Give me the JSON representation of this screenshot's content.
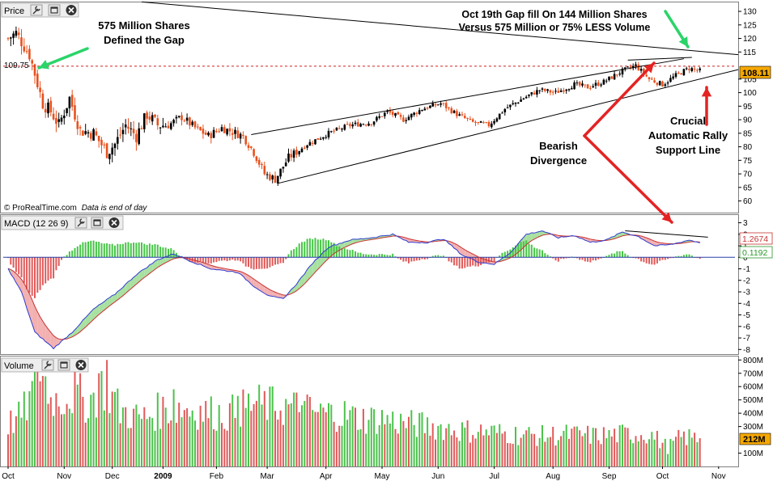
{
  "panels": {
    "price": {
      "title": "Price",
      "current_badge": "108.11",
      "level_label": "109.75"
    },
    "macd": {
      "title": "MACD (12 26 9)",
      "badge_macd": "1.2674",
      "badge_hist": "0.1192"
    },
    "volume": {
      "title": "Volume",
      "current_badge": "212M"
    }
  },
  "footer": {
    "brand": "© ProRealTime.com",
    "note": "Data is end of day"
  },
  "annotations": {
    "gap_top": "575 Million Shares",
    "gap_bottom": "Defined the Gap",
    "fill_line1": "Oct 19th Gap fill On 144 Million Shares",
    "fill_line2": "Versus 575 Million or 75% LESS Volume",
    "bear1": "Bearish",
    "bear2": "Divergence",
    "crucial1": "Crucial",
    "crucial2": "Automatic Rally",
    "crucial3": "Support Line"
  },
  "colors": {
    "up": "#000000",
    "down": "#e8511e",
    "vol_up": "#4cc24c",
    "vol_down": "#e05a5a",
    "macd_line": "#2f3ccf",
    "signal_line": "#c83232",
    "hist_pos": "#46c646",
    "hist_neg": "#e05a5a",
    "fill_pos": "#a8e0a0",
    "fill_neg": "#f2b0b0",
    "badge_price": "#f5a800",
    "badge_volume": "#f5a800",
    "arrow_green": "#2bd46a",
    "arrow_red": "#e42323",
    "dotted_level": "#d02020"
  },
  "chart_data": [
    {
      "type": "candlestick",
      "name": "Price",
      "ylim": [
        56,
        133
      ],
      "yticks": [
        60,
        65,
        70,
        75,
        80,
        85,
        90,
        95,
        100,
        105,
        110,
        115,
        120,
        125,
        130
      ],
      "x_labels": [
        "Oct",
        "Nov",
        "Dec",
        "2009",
        "Feb",
        "Mar",
        "Apr",
        "May",
        "Jun",
        "Jul",
        "Aug",
        "Sep",
        "Oct",
        "Nov"
      ],
      "x_label_positions": [
        0,
        21,
        39,
        58,
        78,
        97,
        119,
        140,
        161,
        182,
        204,
        225,
        245,
        266
      ],
      "n_bars": 260,
      "key_points": [
        {
          "i": 0,
          "v": 120
        },
        {
          "i": 3,
          "v": 122
        },
        {
          "i": 8,
          "v": 114
        },
        {
          "i": 10,
          "v": 107
        },
        {
          "i": 13,
          "v": 96
        },
        {
          "i": 16,
          "v": 93
        },
        {
          "i": 19,
          "v": 88
        },
        {
          "i": 23,
          "v": 98
        },
        {
          "i": 27,
          "v": 86
        },
        {
          "i": 32,
          "v": 85
        },
        {
          "i": 37,
          "v": 78
        },
        {
          "i": 40,
          "v": 81
        },
        {
          "i": 44,
          "v": 88
        },
        {
          "i": 48,
          "v": 84
        },
        {
          "i": 52,
          "v": 92
        },
        {
          "i": 56,
          "v": 88
        },
        {
          "i": 60,
          "v": 88
        },
        {
          "i": 65,
          "v": 91
        },
        {
          "i": 70,
          "v": 87
        },
        {
          "i": 75,
          "v": 84
        },
        {
          "i": 80,
          "v": 87
        },
        {
          "i": 88,
          "v": 84
        },
        {
          "i": 92,
          "v": 78
        },
        {
          "i": 96,
          "v": 70
        },
        {
          "i": 100,
          "v": 68
        },
        {
          "i": 105,
          "v": 76
        },
        {
          "i": 112,
          "v": 81
        },
        {
          "i": 120,
          "v": 85
        },
        {
          "i": 128,
          "v": 88
        },
        {
          "i": 136,
          "v": 89
        },
        {
          "i": 142,
          "v": 93
        },
        {
          "i": 148,
          "v": 90
        },
        {
          "i": 155,
          "v": 94
        },
        {
          "i": 162,
          "v": 96
        },
        {
          "i": 168,
          "v": 92
        },
        {
          "i": 174,
          "v": 89
        },
        {
          "i": 180,
          "v": 88
        },
        {
          "i": 186,
          "v": 94
        },
        {
          "i": 193,
          "v": 98
        },
        {
          "i": 199,
          "v": 101
        },
        {
          "i": 205,
          "v": 100
        },
        {
          "i": 212,
          "v": 103
        },
        {
          "i": 217,
          "v": 102
        },
        {
          "i": 223,
          "v": 104
        },
        {
          "i": 230,
          "v": 108
        },
        {
          "i": 235,
          "v": 110
        },
        {
          "i": 240,
          "v": 105
        },
        {
          "i": 245,
          "v": 103
        },
        {
          "i": 251,
          "v": 107
        },
        {
          "i": 255,
          "v": 109
        },
        {
          "i": 259,
          "v": 108
        }
      ],
      "gap_level": 109.75,
      "last": 108.11,
      "lines": [
        {
          "name": "long-downtrend",
          "p1": [
            50,
            133.5
          ],
          "p2": [
            276,
            114.0
          ]
        },
        {
          "name": "wedge-upper",
          "p1": [
            91,
            84.5
          ],
          "p2": [
            253,
            112.5
          ]
        },
        {
          "name": "wedge-lower",
          "p1": [
            101,
            66.5
          ],
          "p2": [
            276,
            108.5
          ]
        },
        {
          "name": "recent-highs",
          "p1": [
            232,
            112.0
          ],
          "p2": [
            256,
            113.0
          ]
        }
      ]
    },
    {
      "type": "line",
      "name": "MACD (12 26 9)",
      "ylim": [
        -8.4,
        3.6
      ],
      "yticks": [
        -8,
        -7,
        -6,
        -5,
        -4,
        -3,
        -2,
        -1,
        0,
        1,
        2,
        3
      ],
      "macd_last": 1.2674,
      "hist_last": 0.1192,
      "macd_key_points": [
        {
          "i": 0,
          "v": -1.0
        },
        {
          "i": 5,
          "v": -3.0
        },
        {
          "i": 10,
          "v": -6.5
        },
        {
          "i": 17,
          "v": -7.9
        },
        {
          "i": 24,
          "v": -6.5
        },
        {
          "i": 32,
          "v": -4.5
        },
        {
          "i": 40,
          "v": -3.2
        },
        {
          "i": 48,
          "v": -1.5
        },
        {
          "i": 56,
          "v": -0.2
        },
        {
          "i": 62,
          "v": 0.3
        },
        {
          "i": 68,
          "v": -0.3
        },
        {
          "i": 76,
          "v": -1.0
        },
        {
          "i": 86,
          "v": -1.3
        },
        {
          "i": 92,
          "v": -2.5
        },
        {
          "i": 98,
          "v": -3.4
        },
        {
          "i": 103,
          "v": -3.6
        },
        {
          "i": 108,
          "v": -2.3
        },
        {
          "i": 114,
          "v": -0.5
        },
        {
          "i": 120,
          "v": 0.9
        },
        {
          "i": 128,
          "v": 1.5
        },
        {
          "i": 136,
          "v": 1.7
        },
        {
          "i": 144,
          "v": 2.0
        },
        {
          "i": 150,
          "v": 1.3
        },
        {
          "i": 157,
          "v": 1.3
        },
        {
          "i": 163,
          "v": 1.6
        },
        {
          "i": 170,
          "v": 0.2
        },
        {
          "i": 176,
          "v": -0.4
        },
        {
          "i": 182,
          "v": -0.6
        },
        {
          "i": 188,
          "v": 0.4
        },
        {
          "i": 194,
          "v": 2.0
        },
        {
          "i": 200,
          "v": 2.3
        },
        {
          "i": 206,
          "v": 1.7
        },
        {
          "i": 212,
          "v": 1.9
        },
        {
          "i": 218,
          "v": 1.3
        },
        {
          "i": 224,
          "v": 1.5
        },
        {
          "i": 230,
          "v": 2.2
        },
        {
          "i": 236,
          "v": 1.8
        },
        {
          "i": 242,
          "v": 1.0
        },
        {
          "i": 248,
          "v": 1.1
        },
        {
          "i": 255,
          "v": 1.5
        },
        {
          "i": 259,
          "v": 1.27
        }
      ],
      "divergence_line": {
        "p1": [
          231,
          2.3
        ],
        "p2": [
          262,
          1.75
        ]
      }
    },
    {
      "type": "bar",
      "name": "Volume",
      "ylim": [
        0,
        820
      ],
      "yticks": [
        100,
        200,
        300,
        400,
        500,
        600,
        700,
        800
      ],
      "ytick_labels": [
        "100M",
        "200M",
        "300M",
        "400M",
        "500M",
        "600M",
        "700M",
        "800M"
      ],
      "last": 212,
      "key_points": [
        {
          "i": 0,
          "v": 320
        },
        {
          "i": 5,
          "v": 380
        },
        {
          "i": 10,
          "v": 575
        },
        {
          "i": 12,
          "v": 700
        },
        {
          "i": 18,
          "v": 500
        },
        {
          "i": 25,
          "v": 550
        },
        {
          "i": 30,
          "v": 480
        },
        {
          "i": 36,
          "v": 610
        },
        {
          "i": 42,
          "v": 420
        },
        {
          "i": 50,
          "v": 360
        },
        {
          "i": 58,
          "v": 430
        },
        {
          "i": 66,
          "v": 440
        },
        {
          "i": 74,
          "v": 410
        },
        {
          "i": 82,
          "v": 390
        },
        {
          "i": 92,
          "v": 470
        },
        {
          "i": 100,
          "v": 450
        },
        {
          "i": 108,
          "v": 440
        },
        {
          "i": 116,
          "v": 400
        },
        {
          "i": 124,
          "v": 400
        },
        {
          "i": 132,
          "v": 360
        },
        {
          "i": 140,
          "v": 360
        },
        {
          "i": 150,
          "v": 320
        },
        {
          "i": 160,
          "v": 300
        },
        {
          "i": 170,
          "v": 270
        },
        {
          "i": 180,
          "v": 260
        },
        {
          "i": 190,
          "v": 240
        },
        {
          "i": 200,
          "v": 230
        },
        {
          "i": 210,
          "v": 240
        },
        {
          "i": 220,
          "v": 230
        },
        {
          "i": 230,
          "v": 240
        },
        {
          "i": 240,
          "v": 250
        },
        {
          "i": 247,
          "v": 144
        },
        {
          "i": 252,
          "v": 220
        },
        {
          "i": 259,
          "v": 212
        }
      ],
      "spikes": [
        {
          "i": 11,
          "v": 770
        },
        {
          "i": 13,
          "v": 680
        },
        {
          "i": 16,
          "v": 520
        },
        {
          "i": 22,
          "v": 470
        },
        {
          "i": 37,
          "v": 800
        },
        {
          "i": 34,
          "v": 700
        },
        {
          "i": 40,
          "v": 560
        },
        {
          "i": 62,
          "v": 580
        },
        {
          "i": 86,
          "v": 530
        },
        {
          "i": 98,
          "v": 600
        },
        {
          "i": 110,
          "v": 460
        }
      ]
    }
  ]
}
